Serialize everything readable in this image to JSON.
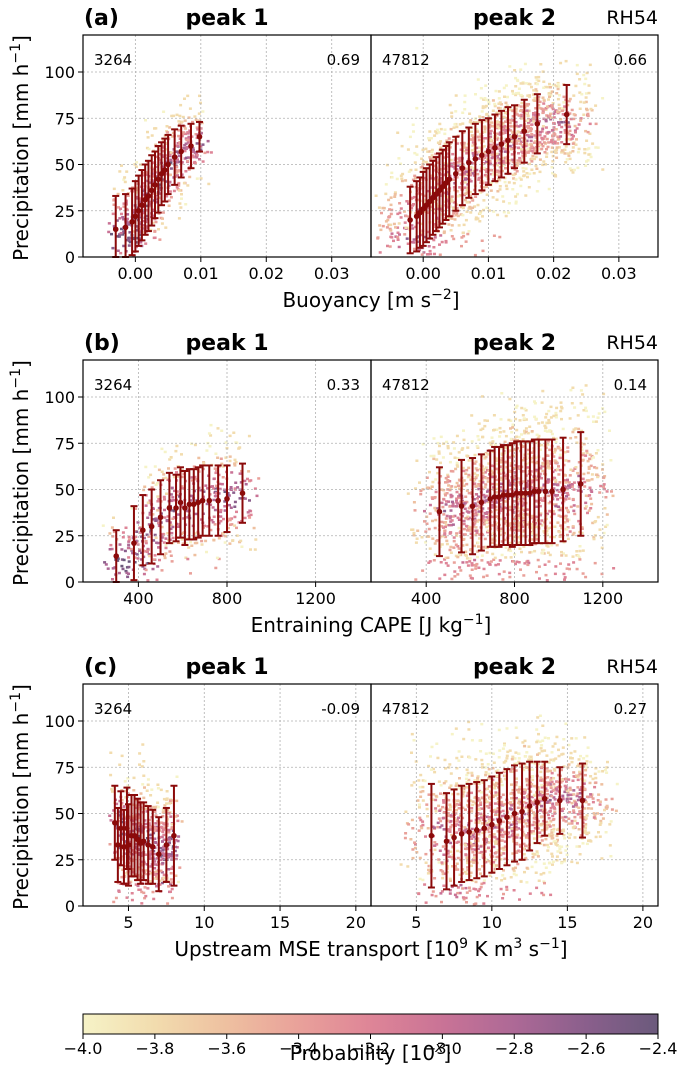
{
  "colors": {
    "mean": "#8b0a0a",
    "cmap": [
      "#f6f3c7",
      "#f2dcae",
      "#eec0a0",
      "#e9a19a",
      "#de8597",
      "#c97396",
      "#ad6996",
      "#8a5f8c",
      "#6b5a7c"
    ]
  },
  "legend": {
    "label": "Probability [10^x]",
    "label_prefix": "Probability [10",
    "label_sup": "x",
    "label_suffix": "]",
    "range": [
      -4.0,
      -2.4
    ],
    "ticks": [
      "-4.0",
      "-3.8",
      "-3.6",
      "-3.4",
      "-3.2",
      "-3.0",
      "-2.8",
      "-2.6",
      "-2.4"
    ]
  },
  "chart_data": [
    {
      "type": "scatter",
      "letter": "(a)",
      "rh_label": "RH54",
      "xlabel": "Buoyancy [m s^-2]",
      "xlabel_parts": [
        "Buoyancy [m s",
        "−2",
        "]"
      ],
      "ylabel": "Precipitation [mm h^-1]",
      "xlim": [
        -0.008,
        0.036
      ],
      "ylim": [
        0,
        120
      ],
      "xticks": [
        0.0,
        0.01,
        0.02,
        0.03
      ],
      "xtick_labels": [
        "0.00",
        "0.01",
        "0.02",
        "0.03"
      ],
      "yticks": [
        0,
        25,
        50,
        75,
        100
      ],
      "ytick_labels": [
        "0",
        "25",
        "50",
        "75",
        "100"
      ],
      "subplots": [
        {
          "title": "peak 1",
          "count": "3264",
          "corr": "0.69",
          "x": [
            -0.003,
            -0.0015,
            -0.0005,
            0.0,
            0.0005,
            0.001,
            0.0015,
            0.002,
            0.0025,
            0.003,
            0.0035,
            0.004,
            0.0045,
            0.005,
            0.006,
            0.007,
            0.0085,
            0.0098
          ],
          "y": [
            15,
            16,
            19,
            22,
            25,
            28,
            31,
            33,
            36,
            39,
            42,
            45,
            47,
            50,
            54,
            57,
            60,
            65
          ],
          "err": [
            18,
            18,
            18,
            19,
            19,
            19,
            19,
            19,
            19,
            18,
            18,
            17,
            17,
            16,
            15,
            14,
            12,
            8
          ]
        },
        {
          "title": "peak 2",
          "count": "47812",
          "corr": "0.66",
          "x": [
            -0.002,
            -0.001,
            -0.0005,
            0.0,
            0.0005,
            0.001,
            0.0015,
            0.002,
            0.0025,
            0.003,
            0.0035,
            0.004,
            0.005,
            0.006,
            0.007,
            0.008,
            0.009,
            0.01,
            0.011,
            0.012,
            0.013,
            0.014,
            0.0155,
            0.0175,
            0.022
          ],
          "y": [
            20,
            22,
            24,
            26,
            28,
            30,
            32,
            34,
            36,
            38,
            40,
            42,
            45,
            48,
            51,
            53,
            55,
            57,
            59,
            61,
            63,
            65,
            68,
            72,
            77
          ],
          "err": [
            18,
            19,
            19,
            20,
            20,
            20,
            20,
            20,
            20,
            20,
            20,
            20,
            20,
            20,
            19,
            19,
            19,
            18,
            18,
            18,
            18,
            17,
            17,
            16,
            16
          ]
        }
      ]
    },
    {
      "type": "scatter",
      "letter": "(b)",
      "rh_label": "RH54",
      "xlabel": "Entraining CAPE [J kg^-1]",
      "xlabel_parts": [
        "Entraining CAPE [J kg",
        "−1",
        "]"
      ],
      "ylabel": "Precipitation [mm h^-1]",
      "xlim": [
        150,
        1450
      ],
      "ylim": [
        0,
        120
      ],
      "xticks": [
        400,
        800,
        1200
      ],
      "xtick_labels": [
        "400",
        "800",
        "1200"
      ],
      "yticks": [
        0,
        25,
        50,
        75,
        100
      ],
      "ytick_labels": [
        "0",
        "25",
        "50",
        "75",
        "100"
      ],
      "subplots": [
        {
          "title": "peak 1",
          "count": "3264",
          "corr": "0.33",
          "x": [
            300,
            380,
            420,
            460,
            500,
            540,
            570,
            590,
            610,
            630,
            650,
            670,
            690,
            720,
            760,
            800,
            870
          ],
          "y": [
            14,
            21,
            28,
            30,
            35,
            40,
            40,
            43,
            40,
            42,
            42,
            43,
            44,
            44,
            44,
            45,
            48
          ],
          "err": [
            14,
            20,
            19,
            20,
            20,
            19,
            18,
            19,
            20,
            19,
            19,
            19,
            19,
            19,
            19,
            18,
            16
          ]
        },
        {
          "title": "peak 2",
          "count": "47812",
          "corr": "0.14",
          "x": [
            460,
            560,
            610,
            650,
            690,
            710,
            730,
            750,
            770,
            790,
            810,
            830,
            850,
            870,
            890,
            910,
            940,
            970,
            1020,
            1100
          ],
          "y": [
            38,
            41,
            41,
            43,
            45,
            46,
            46,
            47,
            47,
            47,
            48,
            48,
            48,
            48,
            49,
            49,
            49,
            49,
            50,
            53
          ],
          "err": [
            24,
            25,
            26,
            26,
            26,
            27,
            27,
            27,
            27,
            28,
            28,
            28,
            28,
            28,
            28,
            28,
            28,
            28,
            28,
            28
          ]
        }
      ]
    },
    {
      "type": "scatter",
      "letter": "(c)",
      "rh_label": "RH54",
      "xlabel": "Upstream MSE transport [10^9 K m^3 s^-1]",
      "xlabel_parts": [
        "Upstream MSE transport [10",
        "9",
        " K m",
        "3",
        " s",
        "−1",
        "]"
      ],
      "ylabel": "Precipitation [mm h^-1]",
      "xlim": [
        2,
        21
      ],
      "ylim": [
        0,
        120
      ],
      "xticks": [
        5,
        10,
        15,
        20
      ],
      "xtick_labels": [
        "5",
        "10",
        "15",
        "20"
      ],
      "yticks": [
        0,
        25,
        50,
        75,
        100
      ],
      "ytick_labels": [
        "0",
        "25",
        "50",
        "75",
        "100"
      ],
      "subplots": [
        {
          "title": "peak 1",
          "count": "3264",
          "corr": "-0.09",
          "x": [
            4.1,
            4.3,
            4.5,
            4.7,
            4.9,
            5.0,
            5.2,
            5.4,
            5.6,
            5.8,
            6.0,
            6.3,
            6.6,
            7.0,
            7.5,
            8.0
          ],
          "y": [
            45,
            33,
            42,
            32,
            42,
            33,
            38,
            38,
            36,
            34,
            35,
            33,
            32,
            28,
            33,
            38
          ],
          "err": [
            20,
            20,
            20,
            20,
            22,
            22,
            22,
            22,
            22,
            22,
            21,
            21,
            20,
            20,
            20,
            27
          ]
        },
        {
          "title": "peak 2",
          "count": "47812",
          "corr": "0.27",
          "x": [
            6.0,
            7.0,
            7.5,
            8.0,
            8.5,
            9.0,
            9.5,
            10.0,
            10.5,
            11.0,
            11.5,
            12.0,
            12.5,
            13.0,
            13.5,
            14.5,
            16.0
          ],
          "y": [
            38,
            35,
            37,
            39,
            40,
            41,
            42,
            44,
            46,
            48,
            50,
            51,
            54,
            56,
            58,
            57,
            57
          ],
          "err": [
            28,
            26,
            26,
            26,
            26,
            26,
            26,
            26,
            26,
            26,
            26,
            26,
            24,
            22,
            20,
            18,
            20
          ]
        }
      ]
    }
  ]
}
